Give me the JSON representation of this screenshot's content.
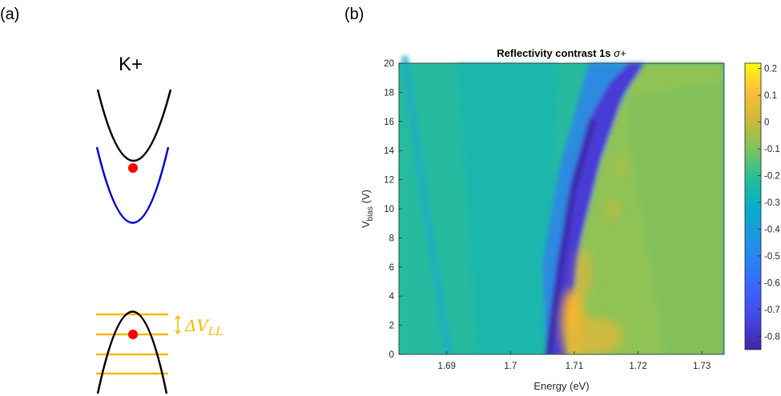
{
  "panel_a": {
    "label": "(a)",
    "valley_label": "K+",
    "delta_symbol": "ΔV",
    "delta_subscript": "LL",
    "colors": {
      "conduction": "#000000",
      "second_band": "#0000cc",
      "dot": "#ff0000",
      "landau_levels": "#f5b800"
    },
    "landau_level_count": 4
  },
  "panel_b": {
    "label": "(b)"
  },
  "chart_data": {
    "type": "heatmap",
    "title_text": "Reflectivity contrast 1s ",
    "title_sym": "σ+",
    "xlabel": "Energy (eV)",
    "ylabel_main": "V",
    "ylabel_sub": "bias",
    "ylabel_unit": " (V)",
    "xlim": [
      1.6825,
      1.7335
    ],
    "ylim": [
      0,
      20
    ],
    "xticks": [
      1.69,
      1.7,
      1.71,
      1.72,
      1.73
    ],
    "xtick_labels": [
      "1.69",
      "1.7",
      "1.71",
      "1.72",
      "1.73"
    ],
    "yticks": [
      0,
      2,
      4,
      6,
      8,
      10,
      12,
      14,
      16,
      18,
      20
    ],
    "yticks_labels": [
      "0",
      "2",
      "4",
      "6",
      "8",
      "10",
      "12",
      "14",
      "16",
      "18",
      "20"
    ],
    "colorbar": {
      "range": [
        -0.85,
        0.22
      ],
      "ticks": [
        0.2,
        0.1,
        0,
        -0.1,
        -0.2,
        -0.3,
        -0.4,
        -0.5,
        -0.6,
        -0.7,
        -0.8
      ],
      "tick_labels": [
        "0.2",
        "0.1",
        "0",
        "-0.1",
        "-0.2",
        "-0.3",
        "-0.4",
        "-0.5",
        "-0.6",
        "-0.7",
        "-0.8"
      ],
      "colormap": "parula"
    },
    "features": {
      "main_resonance_energy_vs_bias": [
        [
          0,
          1.7066
        ],
        [
          2,
          1.7074
        ],
        [
          4,
          1.7084
        ],
        [
          6,
          1.7094
        ],
        [
          8,
          1.7106
        ],
        [
          10,
          1.7118
        ],
        [
          12,
          1.7135
        ],
        [
          14,
          1.7155
        ],
        [
          16,
          1.7172
        ],
        [
          18,
          1.7193
        ],
        [
          20,
          1.7215
        ]
      ],
      "weak_line_energy_vs_bias": [
        [
          4,
          1.6925
        ],
        [
          10,
          1.689
        ],
        [
          16,
          1.686
        ],
        [
          20,
          1.684
        ]
      ],
      "background_value": -0.25,
      "resonance_min_value": -0.8,
      "high_energy_side_max_value": 0.05
    }
  }
}
